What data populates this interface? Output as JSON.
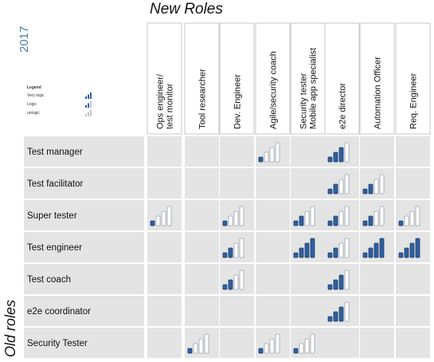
{
  "header": {
    "title": "New Roles",
    "year": "2017"
  },
  "side": {
    "title": "Old roles"
  },
  "legend": {
    "title": "Legend",
    "items": [
      {
        "label": "Very logic",
        "level": 3
      },
      {
        "label": "Logic",
        "level": 2
      },
      {
        "label": "unlogic",
        "level": 1
      }
    ]
  },
  "colors": {
    "bar_fill": "#2f5f9e",
    "bar_empty": "#ffffff",
    "bar_stroke": "#9aa2ad",
    "cell_bg": "#e4e4e4"
  },
  "columns": [
    [
      "Ops engineer/",
      "test monitor"
    ],
    [
      "Tool researcher"
    ],
    [
      "Dev. Engineer"
    ],
    [
      "Agile/security coach"
    ],
    [
      "Security tester",
      "Mobile app specialist"
    ],
    [
      "e2e director"
    ],
    [
      "Automation Officer"
    ],
    [
      "Req. Engineer"
    ]
  ],
  "rows": [
    {
      "label": "Test manager",
      "ratings": [
        0,
        0,
        0,
        1,
        0,
        3,
        0,
        0
      ]
    },
    {
      "label": "Test facilitator",
      "ratings": [
        0,
        0,
        0,
        0,
        0,
        2,
        2,
        0
      ]
    },
    {
      "label": "Super tester",
      "ratings": [
        1,
        0,
        1,
        0,
        2,
        2,
        2,
        1
      ]
    },
    {
      "label": "Test engineer",
      "ratings": [
        0,
        0,
        2,
        0,
        4,
        2,
        4,
        4
      ]
    },
    {
      "label": "Test coach",
      "ratings": [
        0,
        0,
        2,
        0,
        0,
        3,
        0,
        0
      ]
    },
    {
      "label": "e2e coordinator",
      "ratings": [
        0,
        0,
        0,
        0,
        0,
        3,
        0,
        0
      ]
    },
    {
      "label": "Security Tester",
      "ratings": [
        0,
        1,
        0,
        1,
        1,
        0,
        0,
        0
      ]
    }
  ]
}
